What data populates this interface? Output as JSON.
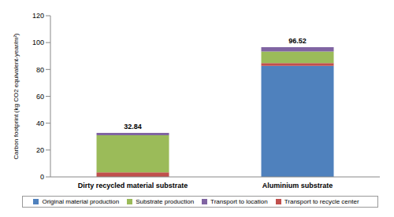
{
  "chart_data": {
    "type": "bar",
    "stacked": true,
    "ylabel": "Carbon footprint (kg CO2 equivalent-year/m²)",
    "categories": [
      "Dirty recycled material substrate",
      "Aluminium substrate"
    ],
    "series": [
      {
        "name": "Original material production",
        "color": "#4f81bd",
        "values": [
          0,
          82.7
        ]
      },
      {
        "name": "Transport to recycle center",
        "color": "#c0504d",
        "values": [
          3.4,
          2.1
        ]
      },
      {
        "name": "Substrate production",
        "color": "#9bbb59",
        "values": [
          27.6,
          8.5
        ]
      },
      {
        "name": "Transport to location",
        "color": "#8064a2",
        "values": [
          1.84,
          3.22
        ]
      }
    ],
    "totals": [
      32.84,
      96.52
    ],
    "ylim": [
      0,
      120
    ],
    "yticks": [
      0,
      20,
      40,
      60,
      80,
      100,
      120
    ],
    "grid": false,
    "legend": "bottom"
  }
}
